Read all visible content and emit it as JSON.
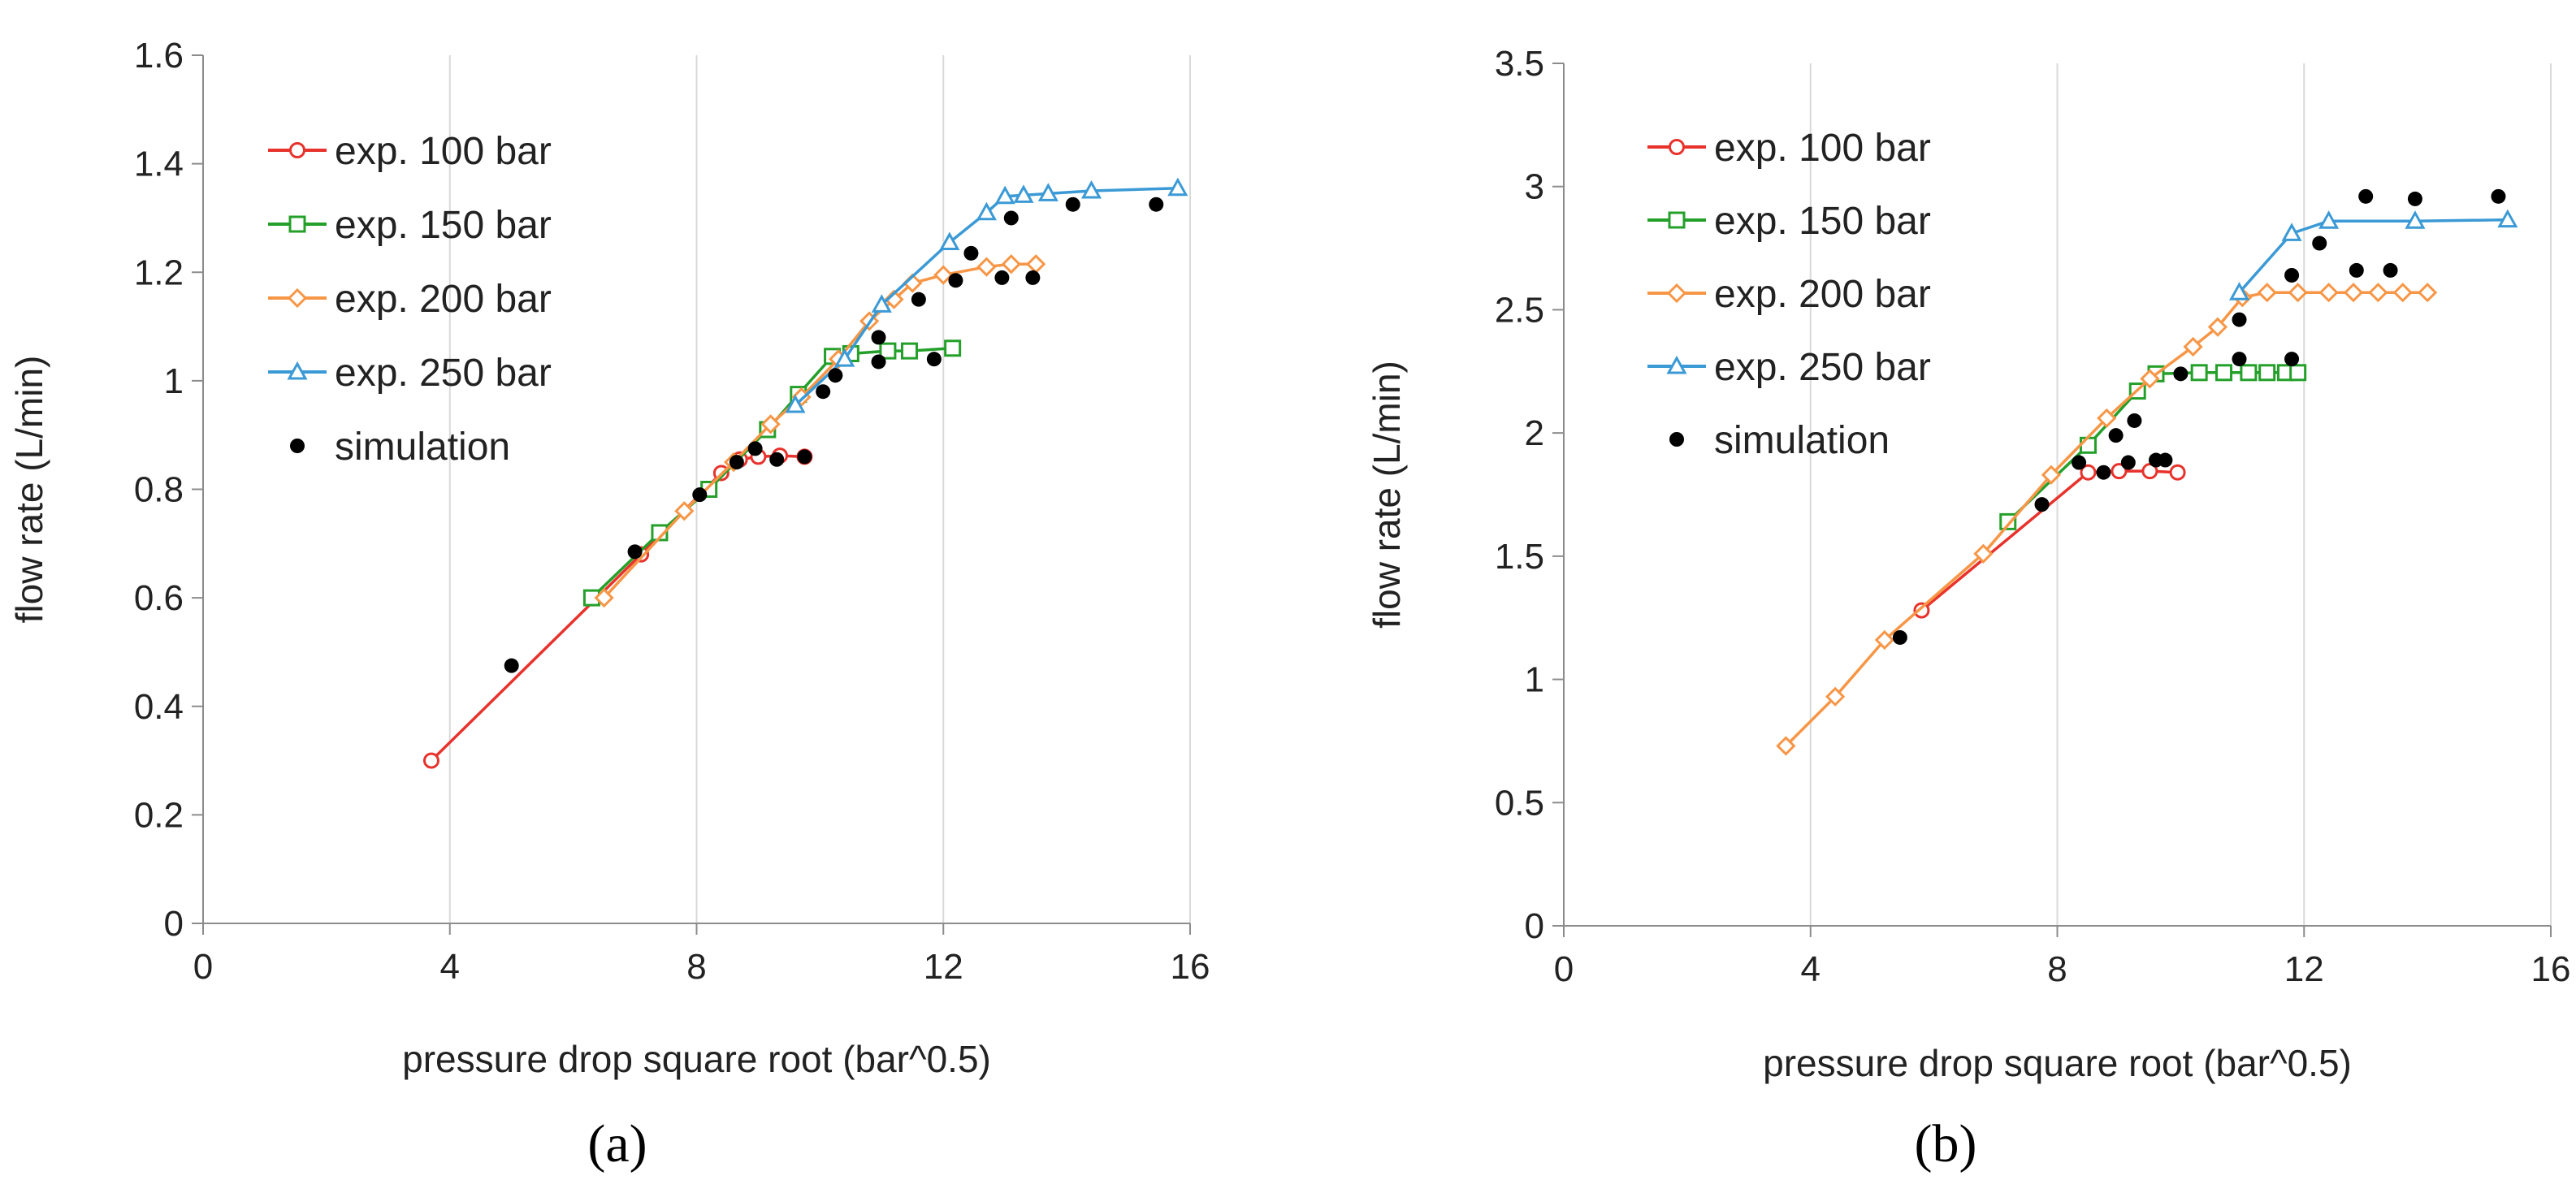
{
  "chart_data": [
    {
      "type": "line",
      "panel_label": "(a)",
      "xlabel": "pressure drop square root (bar^0.5)",
      "ylabel": "flow rate (L/min)",
      "xlim": [
        0,
        16
      ],
      "ylim": [
        0,
        1.6
      ],
      "xticks": [
        "0",
        "4",
        "8",
        "12",
        "16"
      ],
      "yticks": [
        "0",
        "0.2",
        "0.4",
        "0.6",
        "0.8",
        "1",
        "1.2",
        "1.4",
        "1.6"
      ],
      "grid": "vertical",
      "legend_position": "top-left",
      "series": [
        {
          "name": "exp. 100 bar",
          "color": "#e8322c",
          "marker": "circle-open",
          "x": [
            3.7,
            7.1,
            8.4,
            8.7,
            9.0,
            9.35,
            9.75
          ],
          "y": [
            0.3,
            0.68,
            0.83,
            0.855,
            0.86,
            0.862,
            0.86
          ]
        },
        {
          "name": "exp. 150 bar",
          "color": "#24a02a",
          "marker": "square-open",
          "x": [
            6.3,
            7.4,
            8.2,
            9.15,
            9.65,
            10.2,
            10.5,
            11.1,
            11.45,
            12.15
          ],
          "y": [
            0.6,
            0.72,
            0.8,
            0.91,
            0.975,
            1.045,
            1.05,
            1.055,
            1.055,
            1.06
          ]
        },
        {
          "name": "exp. 200 bar",
          "color": "#f79646",
          "marker": "diamond-open",
          "x": [
            6.5,
            7.8,
            8.6,
            9.2,
            9.7,
            10.3,
            10.8,
            11.2,
            11.5,
            12.0,
            12.7,
            13.1,
            13.5
          ],
          "y": [
            0.6,
            0.76,
            0.85,
            0.92,
            0.97,
            1.04,
            1.11,
            1.15,
            1.18,
            1.195,
            1.21,
            1.215,
            1.215
          ]
        },
        {
          "name": "exp. 250 bar",
          "color": "#3b9ad6",
          "marker": "triangle-open",
          "x": [
            9.6,
            10.4,
            11.0,
            12.1,
            12.7,
            13.0,
            13.3,
            13.7,
            14.4,
            15.8
          ],
          "y": [
            0.955,
            1.04,
            1.14,
            1.255,
            1.31,
            1.34,
            1.342,
            1.345,
            1.35,
            1.355
          ]
        },
        {
          "name": "simulation",
          "color": "#000000",
          "marker": "dot",
          "line": false,
          "x": [
            5.0,
            7.0,
            8.05,
            8.65,
            8.95,
            9.3,
            9.75,
            10.05,
            10.25,
            10.95,
            10.95,
            11.6,
            11.85,
            12.2,
            12.45,
            12.95,
            13.1,
            13.45,
            14.1,
            15.45
          ],
          "y": [
            0.475,
            0.685,
            0.79,
            0.85,
            0.875,
            0.855,
            0.86,
            0.98,
            1.01,
            1.035,
            1.08,
            1.15,
            1.04,
            1.185,
            1.235,
            1.19,
            1.3,
            1.19,
            1.325,
            1.325
          ]
        }
      ]
    },
    {
      "type": "line",
      "panel_label": "(b)",
      "xlabel": "pressure drop square root (bar^0.5)",
      "ylabel": "flow rate (L/min)",
      "xlim": [
        0,
        16
      ],
      "ylim": [
        0,
        3.5
      ],
      "xticks": [
        "0",
        "4",
        "8",
        "12",
        "16"
      ],
      "yticks": [
        "0",
        "0.5",
        "1",
        "1.5",
        "2",
        "2.5",
        "3",
        "3.5"
      ],
      "grid": "vertical",
      "legend_position": "top-left",
      "series": [
        {
          "name": "exp. 100 bar",
          "color": "#e8322c",
          "marker": "circle-open",
          "x": [
            5.8,
            8.5,
            9.0,
            9.5,
            9.95
          ],
          "y": [
            1.28,
            1.84,
            1.845,
            1.845,
            1.84
          ]
        },
        {
          "name": "exp. 150 bar",
          "color": "#24a02a",
          "marker": "square-open",
          "x": [
            7.2,
            8.5,
            9.3,
            9.6,
            10.3,
            10.7,
            11.1,
            11.4,
            11.7,
            11.9
          ],
          "y": [
            1.64,
            1.95,
            2.17,
            2.24,
            2.245,
            2.245,
            2.245,
            2.245,
            2.245,
            2.245
          ]
        },
        {
          "name": "exp. 200 bar",
          "color": "#f79646",
          "marker": "diamond-open",
          "x": [
            3.6,
            4.4,
            5.2,
            6.8,
            7.9,
            8.8,
            9.5,
            10.2,
            10.6,
            11.0,
            11.4,
            11.9,
            12.4,
            12.8,
            13.2,
            13.6,
            14.0
          ],
          "y": [
            0.73,
            0.93,
            1.16,
            1.51,
            1.83,
            2.06,
            2.22,
            2.35,
            2.43,
            2.55,
            2.57,
            2.57,
            2.57,
            2.57,
            2.57,
            2.57,
            2.57
          ]
        },
        {
          "name": "exp. 250 bar",
          "color": "#3b9ad6",
          "marker": "triangle-open",
          "x": [
            10.95,
            11.8,
            12.4,
            13.8,
            15.3
          ],
          "y": [
            2.57,
            2.81,
            2.86,
            2.86,
            2.865
          ]
        },
        {
          "name": "simulation",
          "color": "#000000",
          "marker": "dot",
          "line": false,
          "x": [
            5.45,
            7.75,
            8.35,
            8.75,
            8.95,
            9.15,
            9.25,
            9.6,
            9.75,
            10.0,
            10.95,
            10.95,
            11.8,
            11.8,
            12.25,
            12.85,
            13.0,
            13.4,
            13.8,
            15.15
          ],
          "y": [
            1.17,
            1.71,
            1.88,
            1.84,
            1.99,
            1.88,
            2.05,
            1.89,
            1.89,
            2.24,
            2.3,
            2.46,
            2.3,
            2.64,
            2.77,
            2.66,
            2.96,
            2.66,
            2.95,
            2.96
          ]
        }
      ]
    }
  ]
}
